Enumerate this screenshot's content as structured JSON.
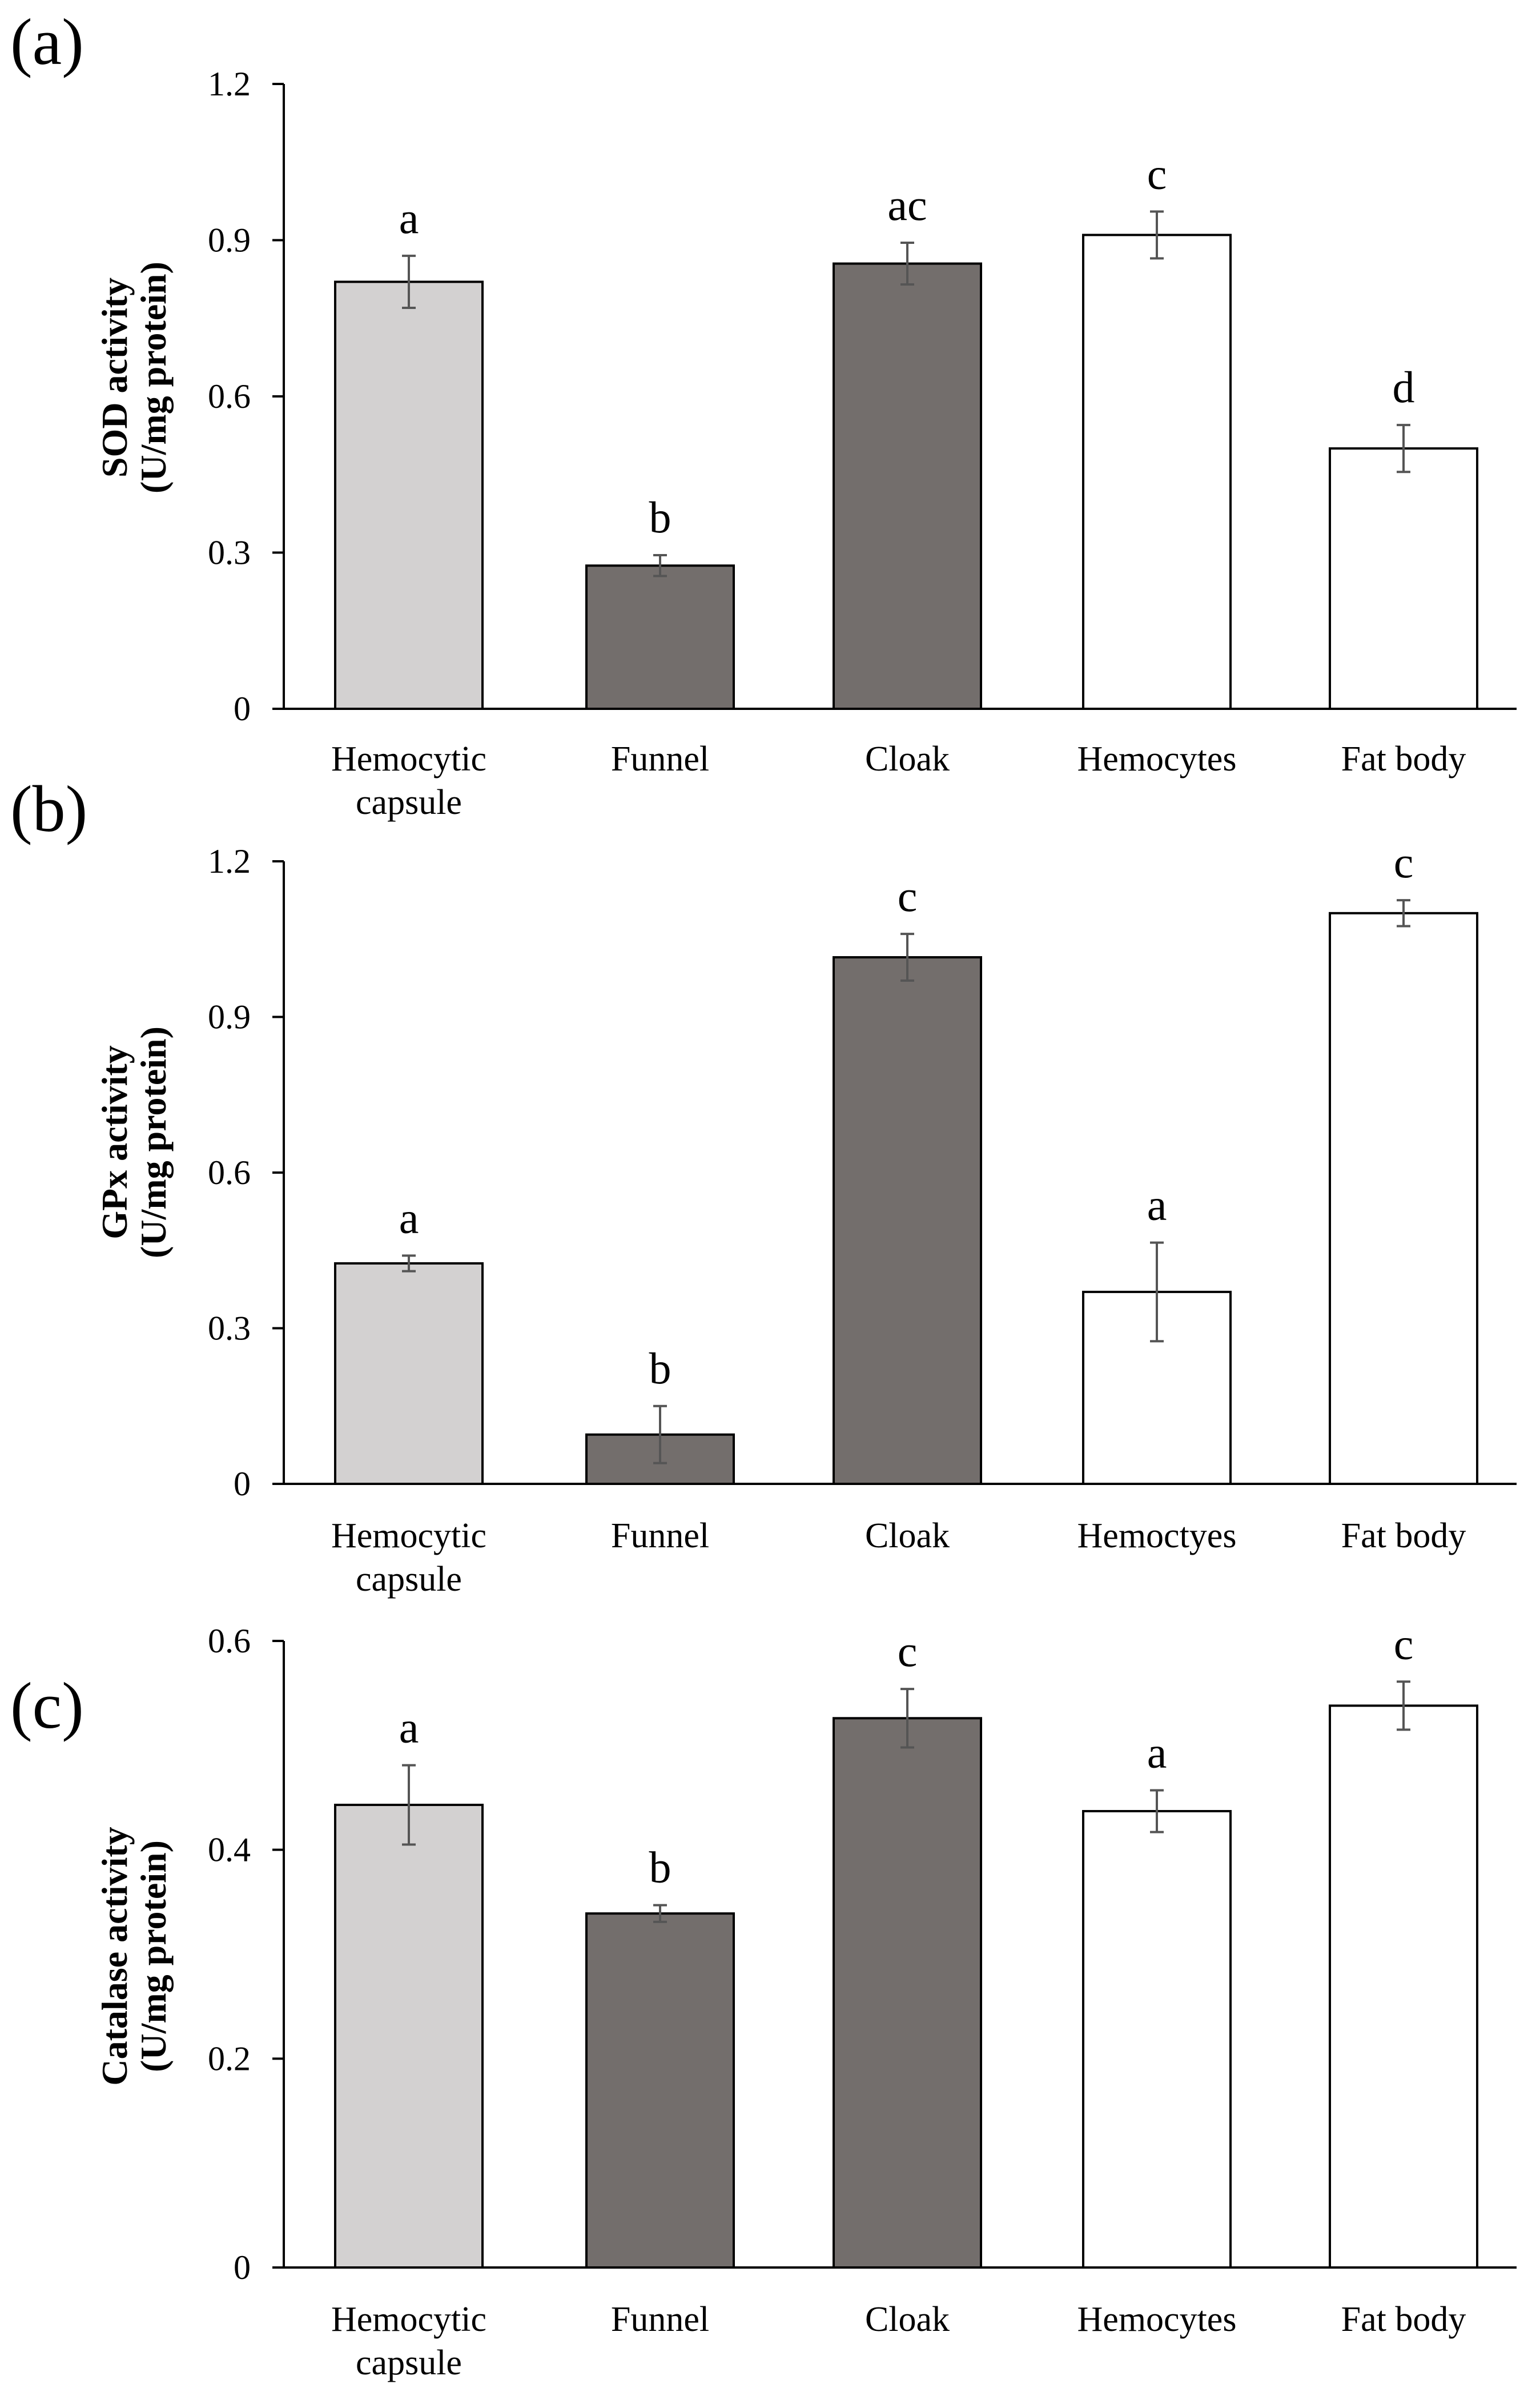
{
  "chart_data": [
    {
      "type": "bar",
      "panel_label": "(a)",
      "ylabel_line1": "SOD activity",
      "ylabel_line2": "(U/mg protein)",
      "ylim": [
        0,
        1.2
      ],
      "yticks": [
        0,
        0.3,
        0.6,
        0.9,
        1.2
      ],
      "ytick_labels": [
        "0",
        "0.3",
        "0.6",
        "0.9",
        "1.2"
      ],
      "categories": [
        [
          "Hemocytic",
          "capsule"
        ],
        [
          "Funnel"
        ],
        [
          "Cloak"
        ],
        [
          "Hemocytes"
        ],
        [
          "Fat body"
        ]
      ],
      "values": [
        0.82,
        0.275,
        0.855,
        0.91,
        0.5
      ],
      "errors": [
        0.05,
        0.02,
        0.04,
        0.045,
        0.045
      ],
      "significance": [
        "a",
        "b",
        "ac",
        "c",
        "d"
      ],
      "bar_colors": [
        "#d3d1d1",
        "#736e6c",
        "#736e6c",
        "#ffffff",
        "#ffffff"
      ]
    },
    {
      "type": "bar",
      "panel_label": "(b)",
      "ylabel_line1": "GPx  activity",
      "ylabel_line2": "(U/mg protein)",
      "ylim": [
        0,
        1.2
      ],
      "yticks": [
        0,
        0.3,
        0.6,
        0.9,
        1.2
      ],
      "ytick_labels": [
        "0",
        "0.3",
        "0.6",
        "0.9",
        "1.2"
      ],
      "categories": [
        [
          "Hemocytic",
          "capsule"
        ],
        [
          "Funnel"
        ],
        [
          "Cloak"
        ],
        [
          "Hemoctyes"
        ],
        [
          "Fat body"
        ]
      ],
      "values": [
        0.425,
        0.095,
        1.015,
        0.37,
        1.1
      ],
      "errors": [
        0.015,
        0.055,
        0.045,
        0.095,
        0.025
      ],
      "significance": [
        "a",
        "b",
        "c",
        "a",
        "c"
      ],
      "bar_colors": [
        "#d3d1d1",
        "#736e6c",
        "#736e6c",
        "#ffffff",
        "#ffffff"
      ]
    },
    {
      "type": "bar",
      "panel_label": "(c)",
      "ylabel_line1": "Catalase  activity",
      "ylabel_line2": "(U/mg protein)",
      "ylim": [
        0,
        0.6
      ],
      "yticks": [
        0,
        0.2,
        0.4,
        0.6
      ],
      "ytick_labels": [
        "0",
        "0.2",
        "0.4",
        "0.6"
      ],
      "categories": [
        [
          "Hemocytic",
          "capsule"
        ],
        [
          "Funnel"
        ],
        [
          "Cloak"
        ],
        [
          "Hemocytes"
        ],
        [
          "Fat body"
        ]
      ],
      "values": [
        0.443,
        0.339,
        0.526,
        0.437,
        0.538
      ],
      "errors": [
        0.038,
        0.008,
        0.028,
        0.02,
        0.023
      ],
      "significance": [
        "a",
        "b",
        "c",
        "a",
        "c"
      ],
      "bar_colors": [
        "#d3d1d1",
        "#736e6c",
        "#736e6c",
        "#ffffff",
        "#ffffff"
      ]
    }
  ]
}
